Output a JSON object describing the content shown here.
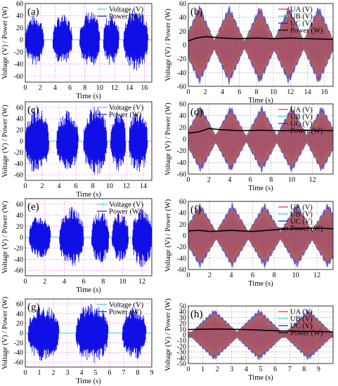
{
  "figure": {
    "description_colors": {
      "blue": "#1010e6",
      "cyan": "#35d6e0",
      "red": "#e8242a",
      "orange": "#f07a28",
      "pink_grid": "#ff66ff",
      "black": "#000000"
    }
  },
  "chart_data": [
    {
      "type": "line",
      "panel_label": "(a)",
      "xlabel": "Time (s)",
      "ylabel": "Voltage (V) / Power (W)",
      "xlim": [
        0,
        17
      ],
      "ylim": [
        -70,
        60
      ],
      "xticks": [
        "0",
        "2",
        "4",
        "6",
        "8",
        "10",
        "12",
        "14",
        "16"
      ],
      "yticks": [
        "60",
        "40",
        "20",
        "0",
        "-20",
        "-40",
        "-60"
      ],
      "grid": "dashed-pink",
      "legend_position": "top-right",
      "series": [
        {
          "name": "Voltage (V)",
          "color": "#35d6e0",
          "style": "line"
        },
        {
          "name": "Power (W)",
          "color": "#1010e6",
          "style": "line"
        }
      ],
      "bursts": [
        [
          0,
          2.5,
          42
        ],
        [
          3.7,
          6.3,
          42
        ],
        [
          7.3,
          10,
          48
        ],
        [
          10.5,
          12.6,
          43
        ],
        [
          13.2,
          16.5,
          52
        ]
      ],
      "voltage_level": 0
    },
    {
      "type": "line",
      "panel_label": "(b)",
      "xlabel": "Time (s)",
      "ylabel": "Voltage (V) / Power (W)",
      "xlim": [
        0,
        17
      ],
      "ylim": [
        -60,
        60
      ],
      "xticks": [
        "0",
        "2",
        "4",
        "6",
        "8",
        "10",
        "12",
        "14",
        "16"
      ],
      "yticks": [
        "60",
        "40",
        "20",
        "0",
        "-20",
        "-40",
        "-60"
      ],
      "grid": "dashed-gray",
      "legend_position": "top-right",
      "series": [
        {
          "name": "UA (V)",
          "color": "#e8242a",
          "style": "line"
        },
        {
          "name": "UB (V)",
          "color": "#35d6e0",
          "style": "line"
        },
        {
          "name": "UC (V)",
          "color": "#1010e6",
          "style": "line"
        },
        {
          "name": "Power (W)",
          "color": "#000000",
          "style": "line"
        }
      ],
      "envelope_peaks": [
        1.3,
        4.8,
        8.4,
        11.8,
        15.3
      ],
      "envelope_amplitude": 58,
      "power_curve": [
        [
          0,
          6
        ],
        [
          1,
          10
        ],
        [
          2,
          12
        ],
        [
          4,
          10
        ],
        [
          6,
          9
        ],
        [
          8,
          10
        ],
        [
          10,
          9
        ],
        [
          12,
          10
        ],
        [
          14,
          9
        ],
        [
          17,
          8
        ]
      ]
    },
    {
      "type": "line",
      "panel_label": "(c)",
      "xlabel": "Time (s)",
      "ylabel": "Voltage (V) / Power (W)",
      "xlim": [
        0,
        15
      ],
      "ylim": [
        -70,
        70
      ],
      "xticks": [
        "0",
        "2",
        "4",
        "6",
        "8",
        "10",
        "12",
        "14"
      ],
      "yticks": [
        "60",
        "40",
        "20",
        "0",
        "-20",
        "-40",
        "-60"
      ],
      "grid": "dashed-pink",
      "legend_position": "top-right",
      "series": [
        {
          "name": "Voltage (V)",
          "color": "#35d6e0",
          "style": "line"
        },
        {
          "name": "Power (W)",
          "color": "#1010e6",
          "style": "line"
        }
      ],
      "bursts": [
        [
          0,
          2.8,
          60
        ],
        [
          3.7,
          6.3,
          55
        ],
        [
          6.9,
          9.7,
          62
        ],
        [
          10.1,
          11.9,
          55
        ],
        [
          12.3,
          14.5,
          58
        ]
      ],
      "voltage_level": 0
    },
    {
      "type": "line",
      "panel_label": "(d)",
      "xlabel": "Time (s)",
      "ylabel": "Voltage (V) / Power (W)",
      "xlim": [
        0,
        14
      ],
      "ylim": [
        -60,
        60
      ],
      "xticks": [
        "0",
        "2",
        "4",
        "6",
        "8",
        "10",
        "12"
      ],
      "yticks": [
        "60",
        "40",
        "20",
        "0",
        "-20",
        "-40",
        "-60"
      ],
      "grid": "dashed-gray",
      "legend_position": "top-right",
      "series": [
        {
          "name": "UA (V)",
          "color": "#e8242a",
          "style": "line"
        },
        {
          "name": "UB (V)",
          "color": "#35d6e0",
          "style": "line"
        },
        {
          "name": "UC (V)",
          "color": "#1010e6",
          "style": "line"
        },
        {
          "name": "Power (W)",
          "color": "#000000",
          "style": "line"
        }
      ],
      "envelope_peaks": [
        1.2,
        4.1,
        7.1,
        10.0,
        12.9
      ],
      "envelope_amplitude": 58,
      "power_curve": [
        [
          0,
          10
        ],
        [
          1,
          12
        ],
        [
          2,
          18
        ],
        [
          3,
          16
        ],
        [
          5,
          14
        ],
        [
          7,
          15
        ],
        [
          9,
          14
        ],
        [
          11,
          15
        ],
        [
          14,
          14
        ]
      ]
    },
    {
      "type": "line",
      "panel_label": "(e)",
      "xlabel": "Time (s)",
      "ylabel": "Voltage (V) / Power (W)",
      "xlim": [
        0,
        13
      ],
      "ylim": [
        -70,
        70
      ],
      "xticks": [
        "0",
        "2",
        "4",
        "6",
        "8",
        "10",
        "12"
      ],
      "yticks": [
        "60",
        "40",
        "20",
        "0",
        "-20",
        "-40",
        "-60"
      ],
      "grid": "dashed-pink",
      "legend_position": "top-right",
      "series": [
        {
          "name": "Voltage (V)",
          "color": "#35d6e0",
          "style": "line"
        },
        {
          "name": "Power (W)",
          "color": "#1010e6",
          "style": "line"
        }
      ],
      "bursts": [
        [
          0.4,
          2.6,
          40
        ],
        [
          3.5,
          6.0,
          55
        ],
        [
          6.8,
          8.6,
          48
        ],
        [
          8.9,
          10.6,
          45
        ],
        [
          11.0,
          13,
          55
        ]
      ],
      "voltage_level": 0
    },
    {
      "type": "line",
      "panel_label": "(f)",
      "xlabel": "Time (s)",
      "ylabel": "Voltage (V) / Power (W)",
      "xlim": [
        0,
        13.5
      ],
      "ylim": [
        -60,
        60
      ],
      "xticks": [
        "0",
        "2",
        "4",
        "6",
        "8",
        "10",
        "12"
      ],
      "yticks": [
        "60",
        "40",
        "20",
        "0",
        "-20",
        "-40",
        "-60"
      ],
      "grid": "dashed-gray",
      "legend_position": "top-right",
      "series": [
        {
          "name": "UA (V)",
          "color": "#e8242a",
          "style": "line"
        },
        {
          "name": "UB (V)",
          "color": "#35d6e0",
          "style": "line"
        },
        {
          "name": "UC (V)",
          "color": "#1010e6",
          "style": "line"
        },
        {
          "name": "Power (W)",
          "color": "#000000",
          "style": "line"
        }
      ],
      "envelope_peaks": [
        1.1,
        4.1,
        7.1,
        10.1,
        13.0
      ],
      "envelope_amplitude": 58,
      "power_curve": [
        [
          0,
          8
        ],
        [
          1,
          9
        ],
        [
          2,
          7
        ],
        [
          4,
          9
        ],
        [
          6,
          7
        ],
        [
          8,
          10
        ],
        [
          10,
          12
        ],
        [
          12,
          13
        ],
        [
          13.5,
          12
        ]
      ]
    },
    {
      "type": "line",
      "panel_label": "(g)",
      "xlabel": "Time (s)",
      "ylabel": "Voltage (V) / Power (W)",
      "xlim": [
        0,
        9
      ],
      "ylim": [
        -70,
        70
      ],
      "xticks": [
        "0",
        "1",
        "2",
        "3",
        "4",
        "5",
        "6",
        "7",
        "8",
        "9"
      ],
      "yticks": [
        "60",
        "40",
        "20",
        "0",
        "-20",
        "-40",
        "-60"
      ],
      "grid": "dashed-pink",
      "legend_position": "top-right",
      "series": [
        {
          "name": "Voltage (V)",
          "color": "#35d6e0",
          "style": "line"
        },
        {
          "name": "Power (W)",
          "color": "#1010e6",
          "style": "line"
        }
      ],
      "bursts": [
        [
          0.2,
          2.4,
          58
        ],
        [
          3.6,
          5.9,
          62
        ],
        [
          6.9,
          8.6,
          55
        ]
      ],
      "voltage_level": 0
    },
    {
      "type": "line",
      "panel_label": "(h)",
      "xlabel": "Time (s)",
      "ylabel": "Voltage (V) / Power (W)",
      "xlim": [
        0,
        10
      ],
      "ylim": [
        -50,
        50
      ],
      "xticks": [
        "0",
        "1",
        "2",
        "3",
        "4",
        "5",
        "6",
        "7",
        "8",
        "9"
      ],
      "yticks": [
        "50",
        "40",
        "30",
        "20",
        "10",
        "0",
        "-10",
        "-20",
        "-30",
        "-40",
        "-50"
      ],
      "grid": "dashed-gray",
      "legend_position": "top-right",
      "series": [
        {
          "name": "UA (V)",
          "color": "#e8242a",
          "style": "line"
        },
        {
          "name": "UB (V)",
          "color": "#35d6e0",
          "style": "line"
        },
        {
          "name": "UC (V)",
          "color": "#1010e6",
          "style": "line"
        },
        {
          "name": "Power (W)",
          "color": "#000000",
          "style": "line"
        }
      ],
      "envelope_peaks": [
        1.8,
        4.9,
        8.3
      ],
      "envelope_amplitude": 45,
      "power_curve": [
        [
          0,
          9
        ],
        [
          2,
          10
        ],
        [
          4,
          9
        ],
        [
          6,
          7
        ],
        [
          8,
          6
        ],
        [
          10,
          5
        ]
      ]
    }
  ]
}
